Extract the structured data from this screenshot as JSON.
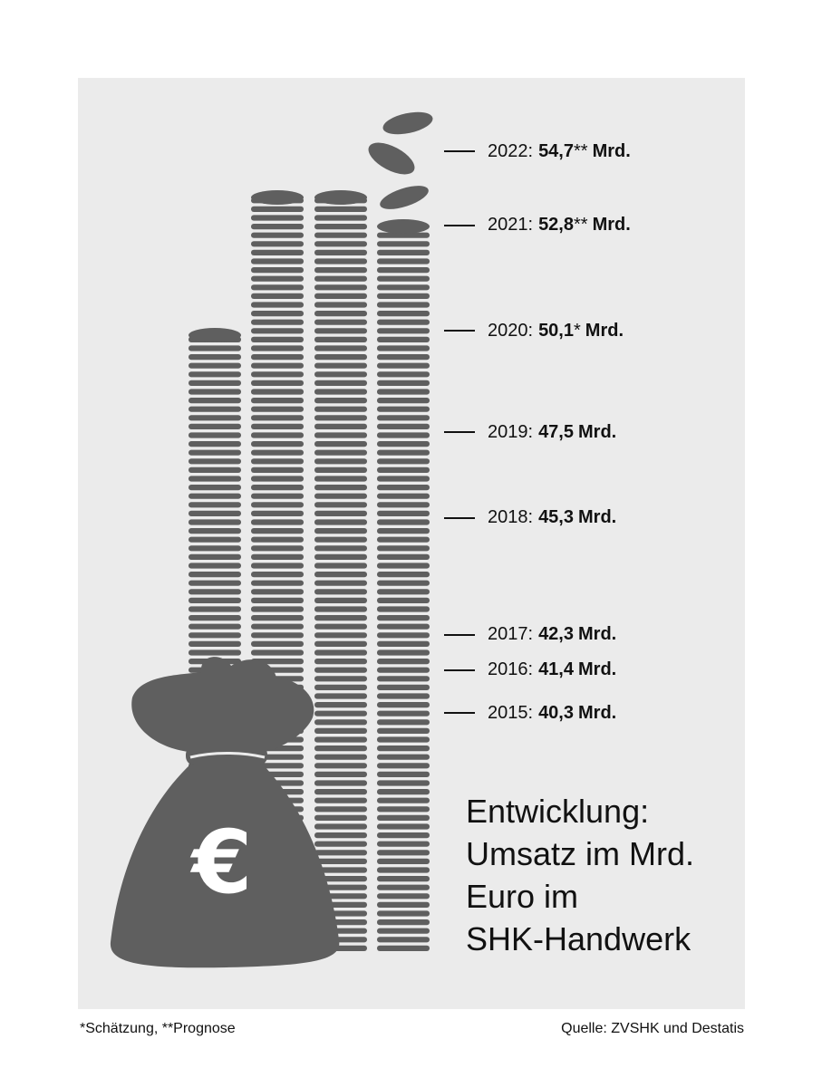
{
  "chart_data": {
    "type": "bar",
    "title_lines": [
      "Entwicklung:",
      "Umsatz im Mrd.",
      "Euro im",
      "SHK-Handwerk"
    ],
    "categories": [
      "2015",
      "2016",
      "2017",
      "2018",
      "2019",
      "2020",
      "2021",
      "2022"
    ],
    "values": [
      40.3,
      41.4,
      42.3,
      45.3,
      47.5,
      50.1,
      52.8,
      54.7
    ],
    "labels": [
      {
        "year": "2015",
        "value": "40,3",
        "mark": "",
        "unit": "Mrd."
      },
      {
        "year": "2016",
        "value": "41,4",
        "mark": "",
        "unit": "Mrd."
      },
      {
        "year": "2017",
        "value": "42,3",
        "mark": "",
        "unit": "Mrd."
      },
      {
        "year": "2018",
        "value": "45,3",
        "mark": "",
        "unit": "Mrd."
      },
      {
        "year": "2019",
        "value": "47,5",
        "mark": "",
        "unit": "Mrd."
      },
      {
        "year": "2020",
        "value": "50,1",
        "mark": "*",
        "unit": "Mrd."
      },
      {
        "year": "2021",
        "value": "52,8",
        "mark": "**",
        "unit": "Mrd."
      },
      {
        "year": "2022",
        "value": "54,7",
        "mark": "**",
        "unit": "Mrd."
      }
    ],
    "stack_color": "#5f5f5f"
  },
  "footer": {
    "note": "*Schätzung, **Prognose",
    "source": "Quelle: ZVSHK und Destatis"
  }
}
